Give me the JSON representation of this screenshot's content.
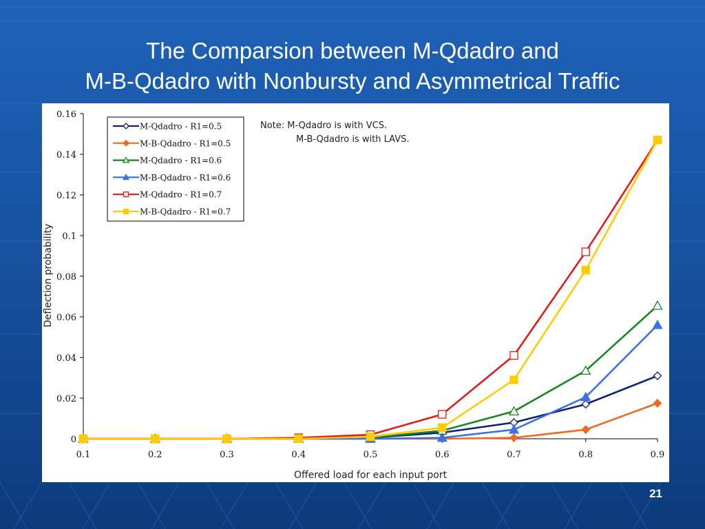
{
  "slide": {
    "title_line1": "The Comparsion between M-Qdadro and",
    "title_line2": "M-B-Qdadro with Nonbursty and Asymmetrical Traffic",
    "page_number": "21",
    "background_color": "#1a56a6",
    "title_color": "#ffffff"
  },
  "chart_data": {
    "type": "line",
    "xlabel": "Offered load for each input port",
    "ylabel": "Deflection probability",
    "x": [
      0.1,
      0.2,
      0.3,
      0.4,
      0.5,
      0.6,
      0.7,
      0.8,
      0.9
    ],
    "xlim": [
      0.1,
      0.9
    ],
    "ylim": [
      0,
      0.16
    ],
    "x_ticks": [
      "0.1",
      "0.2",
      "0.3",
      "0.4",
      "0.5",
      "0.6",
      "0.7",
      "0.8",
      "0.9"
    ],
    "y_ticks": [
      "0",
      "0.02",
      "0.04",
      "0.06",
      "0.08",
      "0.1",
      "0.12",
      "0.14",
      "0.16"
    ],
    "y_tick_values": [
      0,
      0.02,
      0.04,
      0.06,
      0.08,
      0.1,
      0.12,
      0.14,
      0.16
    ],
    "grid": false,
    "legend_position": "top-left",
    "annotation_line1": "Note: M-Qdadro is with VCS.",
    "annotation_line2": "M-B-Qdadro is with LAVS.",
    "series": [
      {
        "name": "M-Qdadro - R1=0.5",
        "color": "#0d1f7a",
        "marker": "diamond",
        "filled": false,
        "values": [
          0,
          0,
          0,
          0,
          0.0005,
          0.003,
          0.008,
          0.017,
          0.031
        ]
      },
      {
        "name": "M-B-Qdadro - R1=0.5",
        "color": "#ee6a1e",
        "marker": "diamond",
        "filled": true,
        "values": [
          0,
          0,
          0,
          0,
          0,
          0,
          0.0005,
          0.0045,
          0.0175
        ]
      },
      {
        "name": "M-Qdadro - R1=0.6",
        "color": "#16861e",
        "marker": "triangle",
        "filled": false,
        "values": [
          0,
          0,
          0,
          0,
          0.0005,
          0.004,
          0.0135,
          0.0335,
          0.0655
        ]
      },
      {
        "name": "M-B-Qdadro - R1=0.6",
        "color": "#3a72e6",
        "marker": "triangle",
        "filled": true,
        "values": [
          0,
          0,
          0,
          0,
          0,
          0.0005,
          0.0045,
          0.0205,
          0.056
        ]
      },
      {
        "name": "M-Qdadro - R1=0.7",
        "color": "#e51919",
        "marker": "square",
        "filled": false,
        "values": [
          0,
          0,
          0,
          0.0005,
          0.002,
          0.012,
          0.041,
          0.092,
          0.147
        ]
      },
      {
        "name": "M-B-Qdadro - R1=0.7",
        "color": "#ffcc00",
        "marker": "square",
        "filled": true,
        "values": [
          0,
          0,
          0,
          0,
          0.001,
          0.0055,
          0.029,
          0.083,
          0.147
        ]
      }
    ]
  }
}
